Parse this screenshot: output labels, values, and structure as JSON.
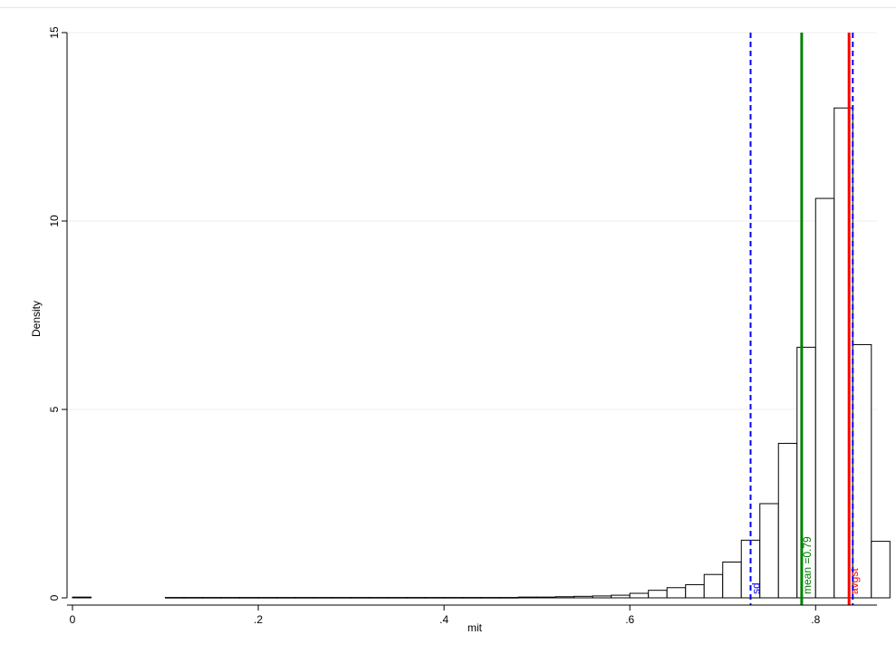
{
  "chart_data": {
    "type": "bar",
    "title": "",
    "xlabel": "mit",
    "ylabel": "Density",
    "xlim": [
      -0.01,
      0.87
    ],
    "ylim": [
      0,
      15
    ],
    "xticks": [
      0,
      0.2,
      0.4,
      0.6,
      0.8
    ],
    "xtick_labels": [
      "0",
      ".2",
      ".4",
      ".6",
      ".8"
    ],
    "yticks": [
      0,
      5,
      10,
      15
    ],
    "ytick_labels": [
      "0",
      "5",
      "10",
      "15"
    ],
    "grid": "horizontal",
    "bin_width": 0.02,
    "bins": [
      {
        "start": 0.0,
        "density": 0.02
      },
      {
        "start": 0.1,
        "density": 0.01
      },
      {
        "start": 0.12,
        "density": 0.01
      },
      {
        "start": 0.14,
        "density": 0.01
      },
      {
        "start": 0.16,
        "density": 0.01
      },
      {
        "start": 0.18,
        "density": 0.01
      },
      {
        "start": 0.2,
        "density": 0.01
      },
      {
        "start": 0.22,
        "density": 0.01
      },
      {
        "start": 0.24,
        "density": 0.01
      },
      {
        "start": 0.26,
        "density": 0.01
      },
      {
        "start": 0.28,
        "density": 0.01
      },
      {
        "start": 0.3,
        "density": 0.01
      },
      {
        "start": 0.32,
        "density": 0.01
      },
      {
        "start": 0.34,
        "density": 0.01
      },
      {
        "start": 0.36,
        "density": 0.01
      },
      {
        "start": 0.38,
        "density": 0.01
      },
      {
        "start": 0.4,
        "density": 0.01
      },
      {
        "start": 0.42,
        "density": 0.01
      },
      {
        "start": 0.44,
        "density": 0.01
      },
      {
        "start": 0.46,
        "density": 0.01
      },
      {
        "start": 0.48,
        "density": 0.02
      },
      {
        "start": 0.5,
        "density": 0.02
      },
      {
        "start": 0.52,
        "density": 0.03
      },
      {
        "start": 0.54,
        "density": 0.04
      },
      {
        "start": 0.56,
        "density": 0.05
      },
      {
        "start": 0.58,
        "density": 0.07
      },
      {
        "start": 0.6,
        "density": 0.12
      },
      {
        "start": 0.62,
        "density": 0.2
      },
      {
        "start": 0.64,
        "density": 0.27
      },
      {
        "start": 0.66,
        "density": 0.35
      },
      {
        "start": 0.68,
        "density": 0.62
      },
      {
        "start": 0.7,
        "density": 0.95
      },
      {
        "start": 0.72,
        "density": 1.53
      },
      {
        "start": 0.74,
        "density": 2.5
      },
      {
        "start": 0.76,
        "density": 4.1
      },
      {
        "start": 0.78,
        "density": 6.65
      },
      {
        "start": 0.8,
        "density": 10.6
      },
      {
        "start": 0.82,
        "density": 13.0
      },
      {
        "start": 0.84,
        "density": 6.72
      },
      {
        "start": 0.86,
        "density": 1.5
      }
    ],
    "reference_lines": [
      {
        "x": 0.73,
        "color": "#0000ff",
        "style": "dashed",
        "label": "sd"
      },
      {
        "x": 0.785,
        "color": "#008000",
        "style": "solid",
        "label": "mean =0.79"
      },
      {
        "x": 0.836,
        "color": "#ff0000",
        "style": "solid",
        "label": "avgst"
      },
      {
        "x": 0.84,
        "color": "#0000ff",
        "style": "dashed",
        "label": ""
      }
    ]
  }
}
